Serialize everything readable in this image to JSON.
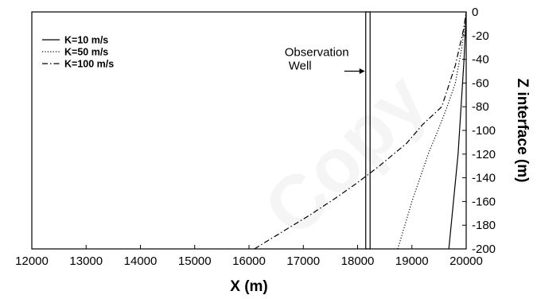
{
  "chart_data": {
    "type": "line",
    "title": "",
    "xlabel": "X (m)",
    "ylabel": "Z interface (m)",
    "xlim": [
      12000,
      20000
    ],
    "ylim": [
      -200,
      0
    ],
    "x_ticks": [
      12000,
      13000,
      14000,
      15000,
      16000,
      17000,
      18000,
      19000,
      20000
    ],
    "y_ticks": [
      0,
      -20,
      -40,
      -60,
      -80,
      -100,
      -120,
      -140,
      -160,
      -180,
      -200
    ],
    "y_axis_side": "right",
    "grid": false,
    "legend_position": "top-left",
    "series": [
      {
        "name": "K=10 m/s",
        "style": "solid",
        "x": [
          19680,
          19850,
          19960,
          20000
        ],
        "y": [
          -200,
          -120,
          -40,
          0
        ]
      },
      {
        "name": "K=50 m/s",
        "style": "dotted",
        "x": [
          18740,
          19000,
          19300,
          19480,
          19650,
          19800,
          19920,
          20000
        ],
        "y": [
          -200,
          -160,
          -120,
          -100,
          -80,
          -60,
          -30,
          0
        ]
      },
      {
        "name": "K=100 m/s",
        "style": "dashdot",
        "x": [
          16100,
          16600,
          17100,
          17600,
          18000,
          18400,
          18900,
          19200,
          19550,
          19800,
          19950,
          20000
        ],
        "y": [
          -200,
          -186,
          -172,
          -157,
          -144,
          -130,
          -111,
          -95,
          -80,
          -45,
          -15,
          0
        ]
      }
    ],
    "annotations": [
      {
        "text_lines": [
          "Observation",
          "Well"
        ],
        "well_x_start": 18150,
        "well_x_end": 18230,
        "arrow_y": -50
      }
    ]
  },
  "watermark": {
    "text": "Copy"
  }
}
